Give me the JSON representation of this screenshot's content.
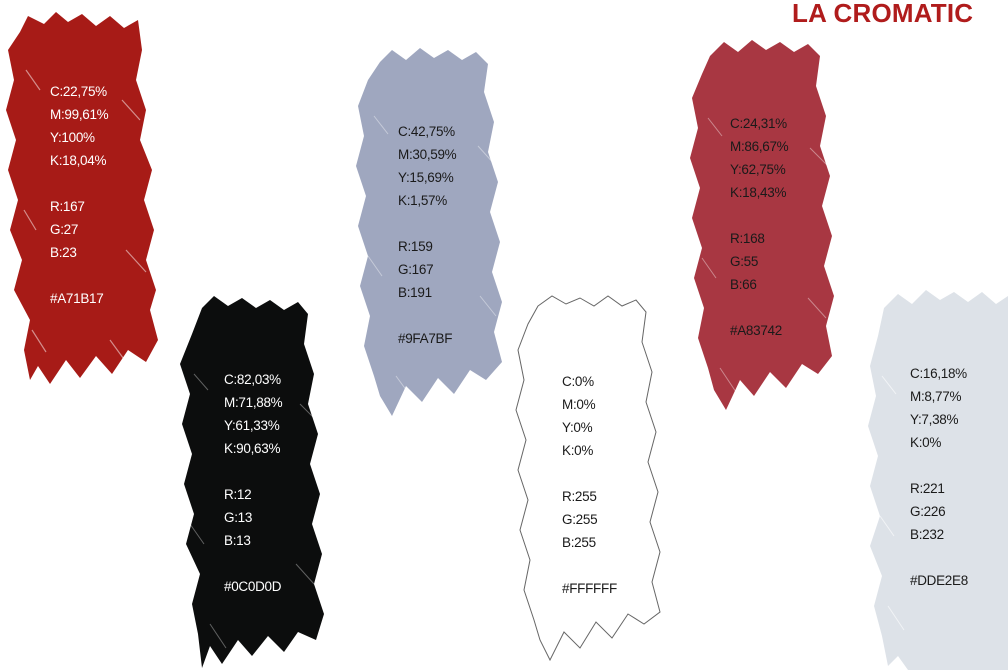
{
  "title": "LA CROMATIC",
  "swatches": [
    {
      "id": "red",
      "fill": "#A71B17",
      "stroke": "none",
      "text_color": "#ffffff",
      "c": "C:22,75%",
      "m": "M:99,61%",
      "y": "Y:100%",
      "k": "K:18,04%",
      "r": "R:167",
      "g": "G:27",
      "b": "B:23",
      "hex": "#A71B17"
    },
    {
      "id": "black",
      "fill": "#0C0D0D",
      "stroke": "none",
      "text_color": "#ffffff",
      "c": "C:82,03%",
      "m": "M:71,88%",
      "y": "Y:61,33%",
      "k": "K:90,63%",
      "r": "R:12",
      "g": "G:13",
      "b": "B:13",
      "hex": "#0C0D0D"
    },
    {
      "id": "slate",
      "fill": "#9FA7BF",
      "stroke": "none",
      "text_color": "#1a1a1a",
      "c": "C:42,75%",
      "m": "M:30,59%",
      "y": "Y:15,69%",
      "k": "K:1,57%",
      "r": "R:159",
      "g": "G:167",
      "b": "B:191",
      "hex": "#9FA7BF"
    },
    {
      "id": "white",
      "fill": "#FFFFFF",
      "stroke": "#666666",
      "text_color": "#1a1a1a",
      "c": "C:0%",
      "m": "M:0%",
      "y": "Y:0%",
      "k": "K:0%",
      "r": "R:255",
      "g": "G:255",
      "b": "B:255",
      "hex": "#FFFFFF"
    },
    {
      "id": "crimson",
      "fill": "#A83742",
      "stroke": "none",
      "text_color": "#1a1a1a",
      "c": "C:24,31%",
      "m": "M:86,67%",
      "y": "Y:62,75%",
      "k": "K:18,43%",
      "r": "R:168",
      "g": "G:55",
      "b": "B:66",
      "hex": "#A83742"
    },
    {
      "id": "mist",
      "fill": "#DDE2E8",
      "stroke": "none",
      "text_color": "#1a1a1a",
      "c": "C:16,18%",
      "m": "M:8,77%",
      "y": "Y:7,38%",
      "k": "K:0%",
      "r": "R:221",
      "g": "G:226",
      "b": "B:232",
      "hex": "#DDE2E8"
    }
  ]
}
